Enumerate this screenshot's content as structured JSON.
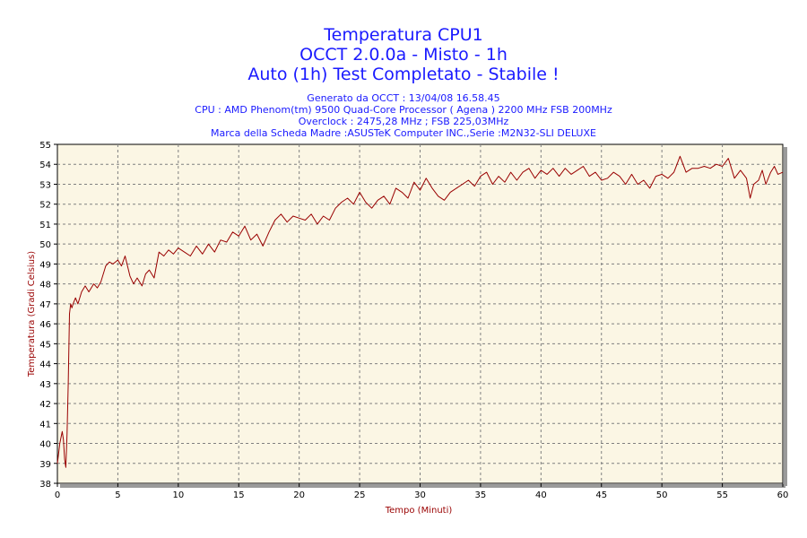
{
  "header": {
    "title_lines": [
      "Temperatura CPU1",
      "OCCT 2.0.0a - Misto - 1h",
      "Auto (1h) Test Completato - Stabile !"
    ],
    "info_lines": [
      "Generato da OCCT : 13/04/08 16.58.45",
      "CPU : AMD Phenom(tm) 9500 Quad-Core Processor ( Agena ) 2200 MHz FSB 200MHz",
      "Overclock : 2475,28 MHz ; FSB 225,03MHz",
      "Marca della Scheda Madre :ASUSTeK Computer INC.,Serie :M2N32-SLI DELUXE"
    ]
  },
  "colors": {
    "title": "#1a1aff",
    "line": "#990000",
    "plot_bg": "#fbf6e4",
    "grid": "#808080",
    "axis_label": "#990000"
  },
  "chart_data": {
    "type": "line",
    "title": "Temperatura CPU1",
    "xlabel": "Tempo (Minuti)",
    "ylabel": "Temperatura (Gradi Celsius)",
    "xlim": [
      0,
      60
    ],
    "ylim": [
      38,
      55
    ],
    "x_ticks": [
      0,
      5,
      10,
      15,
      20,
      25,
      30,
      35,
      40,
      45,
      50,
      55,
      60
    ],
    "y_ticks": [
      38,
      39,
      40,
      41,
      42,
      43,
      44,
      45,
      46,
      47,
      48,
      49,
      50,
      51,
      52,
      53,
      54,
      55
    ],
    "grid": true,
    "series": [
      {
        "x": [
          0,
          0.2,
          0.4,
          0.5,
          0.6,
          0.7,
          0.8,
          0.9,
          1.0,
          1.1,
          1.2,
          1.3,
          1.5,
          1.7,
          2.0,
          2.3,
          2.6,
          3.0,
          3.3,
          3.6,
          4.0,
          4.3,
          4.6,
          5.0,
          5.3,
          5.6,
          6.0,
          6.3,
          6.6,
          7.0,
          7.3,
          7.6,
          8.0,
          8.4,
          8.8,
          9.2,
          9.6,
          10.0,
          10.5,
          11.0,
          11.5,
          12.0,
          12.5,
          13.0,
          13.5,
          14.0,
          14.5,
          15.0,
          15.5,
          16.0,
          16.5,
          17.0,
          17.5,
          18.0,
          18.5,
          19.0,
          19.5,
          20.0,
          20.5,
          21.0,
          21.5,
          22.0,
          22.5,
          23.0,
          23.5,
          24.0,
          24.5,
          25.0,
          25.5,
          26.0,
          26.5,
          27.0,
          27.5,
          28.0,
          28.5,
          29.0,
          29.5,
          30.0,
          30.5,
          31.0,
          31.5,
          32.0,
          32.5,
          33.0,
          33.5,
          34.0,
          34.5,
          35.0,
          35.5,
          36.0,
          36.5,
          37.0,
          37.5,
          38.0,
          38.5,
          39.0,
          39.5,
          40.0,
          40.5,
          41.0,
          41.5,
          42.0,
          42.5,
          43.0,
          43.5,
          44.0,
          44.5,
          45.0,
          45.5,
          46.0,
          46.5,
          47.0,
          47.5,
          48.0,
          48.5,
          49.0,
          49.5,
          50.0,
          50.5,
          51.0,
          51.5,
          52.0,
          52.5,
          53.0,
          53.5,
          54.0,
          54.5,
          55.0,
          55.5,
          56.0,
          56.5,
          57.0,
          57.3,
          57.6,
          58.0,
          58.3,
          58.6,
          59.0,
          59.3,
          59.6,
          60.0
        ],
        "values": [
          39.0,
          40.0,
          40.6,
          40.2,
          39.2,
          38.8,
          40.5,
          43.0,
          46.5,
          47.0,
          46.8,
          47.0,
          47.3,
          47.0,
          47.6,
          47.9,
          47.6,
          48.0,
          47.8,
          48.1,
          48.9,
          49.1,
          49.0,
          49.2,
          48.9,
          49.4,
          48.4,
          48.0,
          48.3,
          47.9,
          48.5,
          48.7,
          48.3,
          49.6,
          49.4,
          49.7,
          49.5,
          49.8,
          49.6,
          49.4,
          49.9,
          49.5,
          50.0,
          49.6,
          50.2,
          50.1,
          50.6,
          50.4,
          50.9,
          50.2,
          50.5,
          49.9,
          50.6,
          51.2,
          51.5,
          51.1,
          51.4,
          51.3,
          51.2,
          51.5,
          51.0,
          51.4,
          51.2,
          51.8,
          52.1,
          52.3,
          52.0,
          52.6,
          52.1,
          51.8,
          52.2,
          52.4,
          52.0,
          52.8,
          52.6,
          52.3,
          53.1,
          52.7,
          53.3,
          52.8,
          52.4,
          52.2,
          52.6,
          52.8,
          53.0,
          53.2,
          52.9,
          53.4,
          53.6,
          53.0,
          53.4,
          53.1,
          53.6,
          53.2,
          53.6,
          53.8,
          53.3,
          53.7,
          53.5,
          53.8,
          53.4,
          53.8,
          53.5,
          53.7,
          53.9,
          53.4,
          53.6,
          53.2,
          53.3,
          53.6,
          53.4,
          53.0,
          53.5,
          53.0,
          53.2,
          52.8,
          53.4,
          53.5,
          53.3,
          53.6,
          54.4,
          53.6,
          53.8,
          53.8,
          53.9,
          53.8,
          54.0,
          53.9,
          54.3,
          53.3,
          53.7,
          53.3,
          52.3,
          53.0,
          53.2,
          53.7,
          53.0,
          53.6,
          53.9,
          53.5,
          53.6
        ]
      }
    ]
  }
}
